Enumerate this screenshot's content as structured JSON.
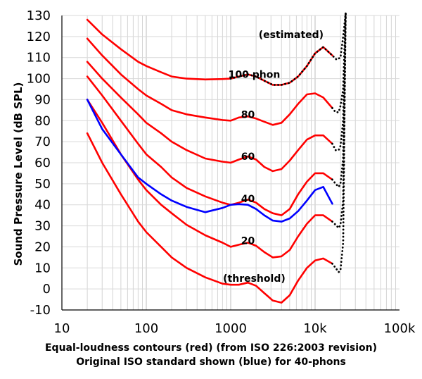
{
  "chart_data": {
    "type": "line",
    "ylabel": "Sound Pressure Level (dB SPL)",
    "xscale": "log",
    "xlim": [
      10,
      100000
    ],
    "ylim": [
      -10,
      130
    ],
    "grid": true,
    "x_ticks": [
      {
        "value": 10,
        "label": "10"
      },
      {
        "value": 100,
        "label": "100"
      },
      {
        "value": 1000,
        "label": "1000"
      },
      {
        "value": 10000,
        "label": "10k"
      },
      {
        "value": 100000,
        "label": "100k"
      }
    ],
    "y_ticks": [
      -10,
      0,
      10,
      20,
      30,
      40,
      50,
      60,
      70,
      80,
      90,
      100,
      110,
      120,
      130
    ],
    "captions": [
      "Equal-loudness contours (red) (from ISO 226:2003 revision)",
      "Original ISO standard shown (blue) for 40-phons"
    ],
    "annotations": [
      {
        "text": "(estimated)",
        "x": 5200,
        "y": 121
      },
      {
        "text": "100 phon",
        "x": 1900,
        "y": 102
      },
      {
        "text": "80",
        "x": 1600,
        "y": 83
      },
      {
        "text": "60",
        "x": 1600,
        "y": 63
      },
      {
        "text": "40",
        "x": 1600,
        "y": 43
      },
      {
        "text": "20",
        "x": 1600,
        "y": 23
      },
      {
        "text": "(threshold)",
        "x": 1900,
        "y": 5
      }
    ],
    "series": [
      {
        "color": "#ff0000",
        "style": "solid",
        "x": [
          20,
          30,
          50,
          80,
          100,
          150,
          200,
          300,
          500,
          800,
          1000,
          1250,
          1600,
          2000,
          2500,
          3150,
          4000,
          5000,
          6300,
          8000,
          10000,
          12500,
          16000
        ],
        "y": [
          128,
          121,
          114,
          108,
          106,
          103,
          101,
          100,
          99.6,
          99.8,
          100,
          101,
          102,
          101,
          99,
          97,
          97,
          98,
          101,
          106,
          112,
          115,
          111
        ]
      },
      {
        "color": "#ff0000",
        "style": "solid",
        "x": [
          20,
          30,
          50,
          80,
          100,
          150,
          200,
          300,
          500,
          800,
          1000,
          1250,
          1600,
          2000,
          2500,
          3150,
          4000,
          5000,
          6300,
          8000,
          10000,
          12500,
          16000
        ],
        "y": [
          119,
          111,
          102,
          95,
          92,
          88,
          85,
          83,
          81.5,
          80.3,
          80,
          81.5,
          82,
          81,
          79.5,
          78,
          79,
          83,
          88,
          92.5,
          93,
          91,
          86
        ]
      },
      {
        "color": "#ff0000",
        "style": "solid",
        "x": [
          20,
          30,
          50,
          80,
          100,
          150,
          200,
          300,
          500,
          800,
          1000,
          1250,
          1600,
          2000,
          2500,
          3150,
          4000,
          5000,
          6300,
          8000,
          10000,
          12500,
          16000
        ],
        "y": [
          108,
          100,
          91,
          83,
          79,
          74,
          70,
          66,
          62,
          60.5,
          60,
          61.5,
          63,
          61.5,
          58,
          56,
          57,
          61,
          66,
          71,
          73,
          73,
          69
        ]
      },
      {
        "color": "#ff0000",
        "style": "solid",
        "x": [
          20,
          30,
          50,
          80,
          100,
          150,
          200,
          300,
          500,
          800,
          1000,
          1250,
          1600,
          2000,
          2500,
          3150,
          4000,
          5000,
          6300,
          8000,
          10000,
          12500,
          16000
        ],
        "y": [
          101,
          92,
          80,
          69,
          64,
          58,
          53,
          48,
          44,
          41,
          40,
          41,
          42.5,
          41,
          38,
          36,
          35,
          38,
          45,
          51,
          55,
          55,
          52
        ]
      },
      {
        "color": "#ff0000",
        "style": "solid",
        "x": [
          20,
          30,
          50,
          80,
          100,
          150,
          200,
          300,
          500,
          800,
          1000,
          1250,
          1600,
          2000,
          2500,
          3150,
          4000,
          5000,
          6300,
          8000,
          10000,
          12500,
          16000
        ],
        "y": [
          90,
          79,
          64,
          52,
          47,
          40,
          36,
          30.5,
          25.5,
          22,
          20,
          21,
          22,
          20.5,
          17.5,
          15,
          15.5,
          18.5,
          25,
          31,
          35,
          35,
          32
        ]
      },
      {
        "color": "#ff0000",
        "style": "solid",
        "x": [
          20,
          30,
          50,
          80,
          100,
          150,
          200,
          300,
          500,
          800,
          1000,
          1250,
          1600,
          2000,
          2500,
          3150,
          4000,
          5000,
          6300,
          8000,
          10000,
          12500,
          16000
        ],
        "y": [
          74,
          60,
          45,
          32,
          27,
          20,
          15,
          10,
          5.5,
          2.5,
          2,
          2,
          3,
          1.5,
          -2,
          -5.5,
          -6.5,
          -3,
          4,
          10,
          13.5,
          14.5,
          12
        ]
      },
      {
        "color": "#0000ff",
        "style": "solid",
        "x": [
          20,
          30,
          50,
          80,
          100,
          150,
          200,
          300,
          500,
          800,
          1000,
          1250,
          1600,
          2000,
          2500,
          3150,
          4000,
          5000,
          6300,
          8000,
          10000,
          12500,
          16000
        ],
        "y": [
          90,
          76,
          64,
          53,
          50,
          45,
          42,
          39,
          36.5,
          38.5,
          40,
          40.3,
          40,
          38,
          35,
          32.5,
          32,
          33.5,
          37,
          42,
          47,
          48.5,
          40.5
        ]
      },
      {
        "color": "#000000",
        "style": "dotted",
        "x": [
          1000,
          1250,
          1600,
          2000,
          2500,
          3150,
          4000,
          5000,
          6300,
          8000,
          10000,
          12500,
          16000,
          18000,
          20000,
          21500,
          23000
        ],
        "y": [
          100,
          101,
          102,
          101,
          99,
          97,
          97,
          98,
          101,
          106,
          112,
          115,
          111,
          109,
          110,
          120,
          131
        ]
      },
      {
        "color": "#000000",
        "style": "dotted",
        "x": [
          16000,
          17500,
          19000,
          20000,
          21500,
          23000
        ],
        "y": [
          86,
          84,
          84,
          87,
          95,
          131
        ]
      },
      {
        "color": "#000000",
        "style": "dotted",
        "x": [
          16000,
          17500,
          19000,
          20000,
          21500,
          23000
        ],
        "y": [
          69,
          66,
          66,
          68,
          80,
          131
        ]
      },
      {
        "color": "#000000",
        "style": "dotted",
        "x": [
          16000,
          17500,
          19000,
          20000,
          21500,
          23000
        ],
        "y": [
          52,
          50,
          48.5,
          50,
          62,
          131
        ]
      },
      {
        "color": "#000000",
        "style": "dotted",
        "x": [
          16000,
          17500,
          19000,
          20000,
          21500,
          23000
        ],
        "y": [
          32,
          30.5,
          29,
          30.5,
          42,
          131
        ]
      },
      {
        "color": "#000000",
        "style": "dotted",
        "x": [
          16000,
          17500,
          19000,
          20000,
          21500,
          23000
        ],
        "y": [
          12,
          10,
          8,
          9,
          22,
          131
        ]
      }
    ]
  }
}
